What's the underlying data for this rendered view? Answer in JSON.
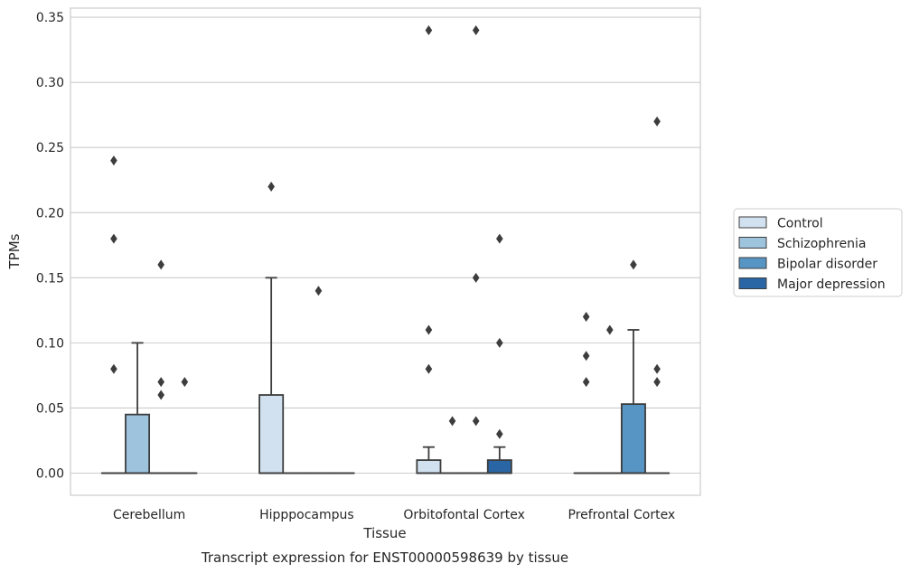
{
  "chart_data": {
    "type": "box",
    "caption": "Transcript expression for ENST00000598639 by tissue",
    "xlabel": "Tissue",
    "ylabel": "TPMs",
    "ylim": [
      -0.017,
      0.357
    ],
    "yticks": [
      0.0,
      0.05,
      0.1,
      0.15,
      0.2,
      0.25,
      0.3,
      0.35
    ],
    "ytick_labels": [
      "0.00",
      "0.05",
      "0.10",
      "0.15",
      "0.20",
      "0.25",
      "0.30",
      "0.35"
    ],
    "grid": "horizontal",
    "legend_position": "right",
    "categories": [
      "Cerebellum",
      "Hipppocampus",
      "Orbitofontal Cortex",
      "Prefrontal Cortex"
    ],
    "series": [
      {
        "name": "Control",
        "color": "#d2e1f0",
        "boxes": [
          {
            "q1": 0,
            "median": 0,
            "q3": 0,
            "whisker_low": 0,
            "whisker_high": 0,
            "outliers": [
              0.18,
              0.24,
              0.08
            ]
          },
          {
            "q1": 0,
            "median": 0,
            "q3": 0.06,
            "whisker_low": 0,
            "whisker_high": 0.15,
            "outliers": [
              0.22
            ]
          },
          {
            "q1": 0,
            "median": 0,
            "q3": 0.01,
            "whisker_low": 0,
            "whisker_high": 0.02,
            "outliers": [
              0.34,
              0.11,
              0.08
            ]
          },
          {
            "q1": 0,
            "median": 0,
            "q3": 0,
            "whisker_low": 0,
            "whisker_high": 0,
            "outliers": [
              0.12,
              0.09,
              0.07
            ]
          }
        ]
      },
      {
        "name": "Schizophrenia",
        "color": "#9dc3dd",
        "boxes": [
          {
            "q1": 0,
            "median": 0,
            "q3": 0.045,
            "whisker_low": 0,
            "whisker_high": 0.1,
            "outliers": []
          },
          {
            "q1": 0,
            "median": 0,
            "q3": 0,
            "whisker_low": 0,
            "whisker_high": 0,
            "outliers": []
          },
          {
            "q1": 0,
            "median": 0,
            "q3": 0,
            "whisker_low": 0,
            "whisker_high": 0,
            "outliers": [
              0.04
            ]
          },
          {
            "q1": 0,
            "median": 0,
            "q3": 0,
            "whisker_low": 0,
            "whisker_high": 0,
            "outliers": [
              0.11
            ]
          }
        ]
      },
      {
        "name": "Bipolar disorder",
        "color": "#5795c4",
        "boxes": [
          {
            "q1": 0,
            "median": 0,
            "q3": 0,
            "whisker_low": 0,
            "whisker_high": 0,
            "outliers": [
              0.16,
              0.06,
              0.07
            ]
          },
          {
            "q1": 0,
            "median": 0,
            "q3": 0,
            "whisker_low": 0,
            "whisker_high": 0,
            "outliers": [
              0.14
            ]
          },
          {
            "q1": 0,
            "median": 0,
            "q3": 0,
            "whisker_low": 0,
            "whisker_high": 0,
            "outliers": [
              0.34,
              0.15,
              0.04
            ]
          },
          {
            "q1": 0,
            "median": 0,
            "q3": 0.053,
            "whisker_low": 0,
            "whisker_high": 0.11,
            "outliers": [
              0.16
            ]
          }
        ]
      },
      {
        "name": "Major depression",
        "color": "#2a66a5",
        "boxes": [
          {
            "q1": 0,
            "median": 0,
            "q3": 0,
            "whisker_low": 0,
            "whisker_high": 0,
            "outliers": [
              0.07
            ]
          },
          {
            "q1": 0,
            "median": 0,
            "q3": 0,
            "whisker_low": 0,
            "whisker_high": 0,
            "outliers": []
          },
          {
            "q1": 0,
            "median": 0,
            "q3": 0.01,
            "whisker_low": 0,
            "whisker_high": 0.02,
            "outliers": [
              0.18,
              0.1,
              0.03
            ]
          },
          {
            "q1": 0,
            "median": 0,
            "q3": 0,
            "whisker_low": 0,
            "whisker_high": 0,
            "outliers": [
              0.27,
              0.08,
              0.07
            ]
          }
        ]
      }
    ]
  }
}
